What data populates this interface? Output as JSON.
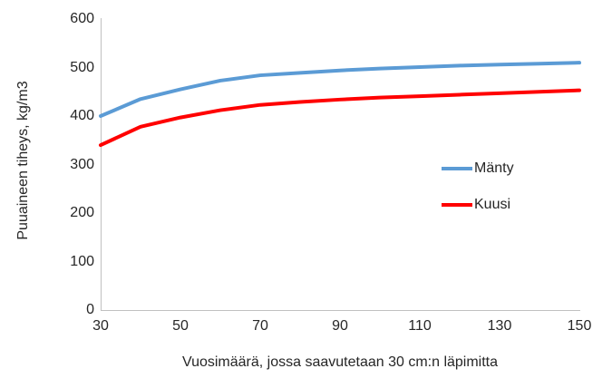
{
  "chart_data": {
    "type": "line",
    "title": "",
    "xlabel": "Vuosimäärä, jossa saavutetaan 30 cm:n läpimitta",
    "ylabel": "Puuaineen tiheys, kg/m3",
    "x": [
      30,
      40,
      50,
      60,
      70,
      80,
      90,
      100,
      110,
      120,
      130,
      140,
      150
    ],
    "series": [
      {
        "name": "Mänty",
        "color": "#5B9BD5",
        "values": [
          400,
          435,
          455,
          473,
          484,
          489,
          494,
          498,
          501,
          504,
          506,
          508,
          510
        ]
      },
      {
        "name": "Kuusi",
        "color": "#FF0000",
        "values": [
          340,
          378,
          397,
          412,
          423,
          429,
          434,
          438,
          441,
          444,
          447,
          450,
          453
        ]
      }
    ],
    "x_ticks": [
      30,
      50,
      70,
      90,
      110,
      130,
      150
    ],
    "y_ticks": [
      0,
      100,
      200,
      300,
      400,
      500,
      600
    ],
    "xlim": [
      30,
      150
    ],
    "ylim": [
      0,
      600
    ],
    "grid": false,
    "legend_position": "right"
  },
  "colors": {
    "background": "#FFFFFF",
    "axis_line": "#C0C0C0",
    "text": "#262626"
  }
}
